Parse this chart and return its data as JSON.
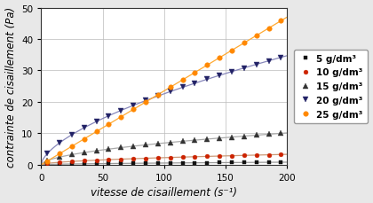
{
  "xlabel": "vitesse de cisaillement (s⁻¹)",
  "ylabel": "contrainte de cisaillement (Pa)",
  "xlim": [
    0,
    200
  ],
  "ylim": [
    0,
    50
  ],
  "xticks": [
    0,
    50,
    100,
    150,
    200
  ],
  "yticks": [
    0,
    10,
    20,
    30,
    40,
    50
  ],
  "series": [
    {
      "label": "5 g/dm³",
      "color": "#111111",
      "marker": "s",
      "marker_size": 3.5,
      "line_color": "#999999",
      "K": 0.038,
      "n": 0.58
    },
    {
      "label": "10 g/dm³",
      "color": "#cc2200",
      "marker": "o",
      "marker_size": 3.5,
      "line_color": "#cc9977",
      "K": 0.18,
      "n": 0.55
    },
    {
      "label": "15 g/dm³",
      "color": "#333333",
      "marker": "^",
      "marker_size": 4,
      "line_color": "#aaaaaa",
      "K": 0.55,
      "n": 0.55
    },
    {
      "label": "20 g/dm³",
      "color": "#222266",
      "marker": "v",
      "marker_size": 4,
      "line_color": "#8888bb",
      "K": 1.3,
      "n": 0.62
    },
    {
      "label": "25 g/dm³",
      "color": "#ff8800",
      "marker": "o",
      "marker_size": 4,
      "line_color": "#ffaa33",
      "K": 0.235,
      "n": 1.0
    }
  ],
  "x_marker_points": [
    5,
    15,
    25,
    35,
    45,
    55,
    65,
    75,
    85,
    95,
    105,
    115,
    125,
    135,
    145,
    155,
    165,
    175,
    185,
    195
  ],
  "legend_fontsize": 7.5,
  "axis_fontsize": 8.5,
  "tick_fontsize": 7.5,
  "background_color": "#ffffff",
  "figure_background": "#e8e8e8"
}
